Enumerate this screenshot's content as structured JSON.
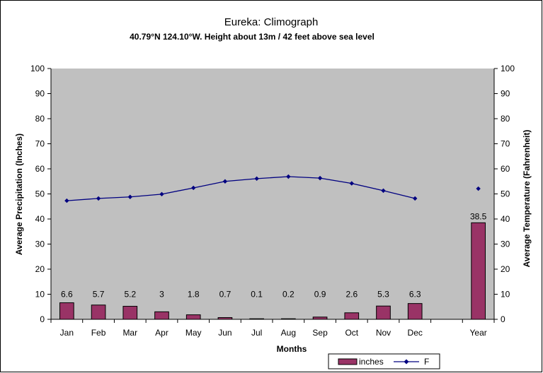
{
  "chart_data": {
    "type": "bar",
    "title": "Eureka: Climograph",
    "subtitle": "40.79°N 124.10°W. Height about 13m / 42 feet above sea level",
    "xlabel": "Months",
    "ylabel": "Average Precipitation (Inches)",
    "y2label": "Average Temperature (Fahrenheit)",
    "categories": [
      "Jan",
      "Feb",
      "Mar",
      "Apr",
      "May",
      "Jun",
      "Jul",
      "Aug",
      "Sep",
      "Oct",
      "Nov",
      "Dec",
      "",
      "Year"
    ],
    "ylim": [
      0,
      100
    ],
    "y2lim": [
      0,
      100
    ],
    "yticks": [
      "0",
      "10",
      "20",
      "30",
      "40",
      "50",
      "60",
      "70",
      "80",
      "90",
      "100"
    ],
    "y2ticks": [
      "0",
      "10",
      "20",
      "30",
      "40",
      "50",
      "60",
      "70",
      "80",
      "90",
      "100"
    ],
    "grid": false,
    "legend_position": "bottom-right",
    "series": [
      {
        "name": "inches",
        "type": "bar",
        "axis": "left",
        "color": "#993366",
        "values": [
          6.6,
          5.7,
          5.2,
          3,
          1.8,
          0.7,
          0.1,
          0.2,
          0.9,
          2.6,
          5.3,
          6.3,
          null,
          38.5
        ],
        "labels": [
          "6.6",
          "5.7",
          "5.2",
          "3",
          "1.8",
          "0.7",
          "0.1",
          "0.2",
          "0.9",
          "2.6",
          "5.3",
          "6.3",
          "",
          "38.5"
        ]
      },
      {
        "name": "F",
        "type": "line",
        "axis": "right",
        "color": "#000080",
        "values": [
          47.3,
          48.2,
          48.8,
          49.9,
          52.4,
          55.0,
          56.1,
          56.9,
          56.3,
          54.2,
          51.3,
          48.2,
          null,
          52.1
        ],
        "connected_until": 11
      }
    ],
    "colors": {
      "plot_bg": "#c0c0c0",
      "bar_fill": "#993366",
      "line": "#000080"
    }
  }
}
